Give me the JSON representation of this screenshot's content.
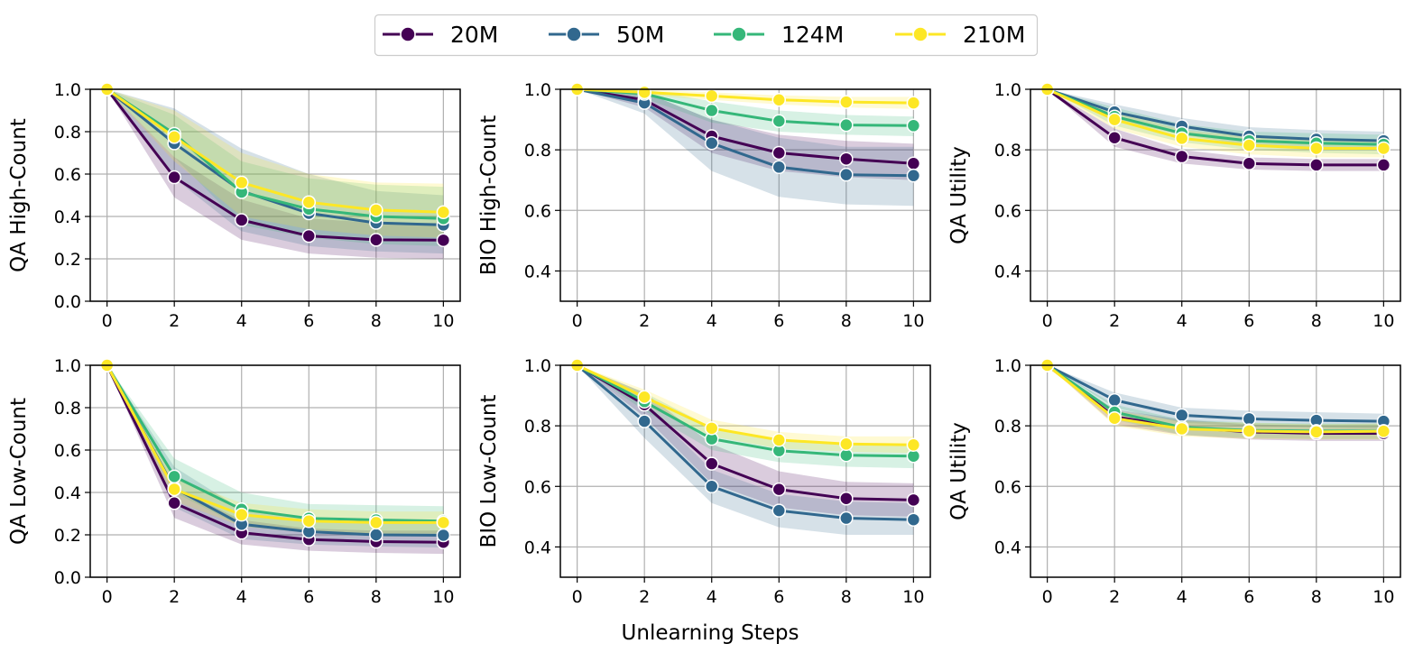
{
  "chart_data": {
    "type": "line",
    "xlabel": "Unlearning Steps",
    "x": [
      0,
      2,
      4,
      6,
      8,
      10
    ],
    "xticks": [
      "0",
      "2",
      "4",
      "6",
      "8",
      "10"
    ],
    "legend": {
      "location": "top-center",
      "entries": [
        {
          "name": "20M",
          "color": "#440154"
        },
        {
          "name": "50M",
          "color": "#31688e"
        },
        {
          "name": "124M",
          "color": "#35b779"
        },
        {
          "name": "210M",
          "color": "#fde725"
        }
      ]
    },
    "grid": true,
    "panels": [
      {
        "ylabel": "QA High-Count",
        "ylim": [
          0.0,
          1.0
        ],
        "yticks": [
          "0.0",
          "0.2",
          "0.4",
          "0.6",
          "0.8",
          "1.0"
        ],
        "series": [
          {
            "name": "20M",
            "values": [
              1.0,
              0.585,
              0.383,
              0.308,
              0.29,
              0.288
            ],
            "lower": [
              1.0,
              0.49,
              0.29,
              0.225,
              0.205,
              0.2
            ],
            "upper": [
              1.0,
              0.68,
              0.48,
              0.39,
              0.37,
              0.37
            ]
          },
          {
            "name": "50M",
            "values": [
              1.0,
              0.745,
              0.52,
              0.415,
              0.37,
              0.36
            ],
            "lower": [
              1.0,
              0.58,
              0.33,
              0.26,
              0.235,
              0.225
            ],
            "upper": [
              1.0,
              0.91,
              0.72,
              0.6,
              0.52,
              0.5
            ]
          },
          {
            "name": "124M",
            "values": [
              1.0,
              0.79,
              0.515,
              0.435,
              0.4,
              0.39
            ],
            "lower": [
              1.0,
              0.68,
              0.36,
              0.3,
              0.27,
              0.26
            ],
            "upper": [
              1.0,
              0.88,
              0.66,
              0.58,
              0.55,
              0.54
            ]
          },
          {
            "name": "210M",
            "values": [
              1.0,
              0.775,
              0.56,
              0.467,
              0.43,
              0.42
            ],
            "lower": [
              1.0,
              0.66,
              0.4,
              0.34,
              0.31,
              0.3
            ],
            "upper": [
              1.0,
              0.9,
              0.7,
              0.6,
              0.56,
              0.555
            ]
          }
        ]
      },
      {
        "ylabel": "BIO High-Count",
        "ylim": [
          0.3,
          1.0
        ],
        "yticks": [
          "0.4",
          "0.6",
          "0.8",
          "1.0"
        ],
        "series": [
          {
            "name": "20M",
            "values": [
              1.0,
              0.965,
              0.845,
              0.79,
              0.77,
              0.755
            ],
            "lower": [
              1.0,
              0.94,
              0.79,
              0.73,
              0.71,
              0.7
            ],
            "upper": [
              1.0,
              0.99,
              0.9,
              0.85,
              0.83,
              0.82
            ]
          },
          {
            "name": "50M",
            "values": [
              1.0,
              0.955,
              0.822,
              0.743,
              0.718,
              0.715
            ],
            "lower": [
              1.0,
              0.92,
              0.73,
              0.645,
              0.62,
              0.615
            ],
            "upper": [
              1.0,
              0.99,
              0.9,
              0.84,
              0.81,
              0.81
            ]
          },
          {
            "name": "124M",
            "values": [
              1.0,
              0.985,
              0.93,
              0.895,
              0.882,
              0.88
            ],
            "lower": [
              1.0,
              0.97,
              0.89,
              0.86,
              0.85,
              0.845
            ],
            "upper": [
              1.0,
              1.0,
              0.96,
              0.93,
              0.915,
              0.91
            ]
          },
          {
            "name": "210M",
            "values": [
              1.0,
              0.99,
              0.978,
              0.965,
              0.958,
              0.955
            ],
            "lower": [
              1.0,
              0.98,
              0.965,
              0.95,
              0.94,
              0.935
            ],
            "upper": [
              1.0,
              1.0,
              0.99,
              0.98,
              0.975,
              0.975
            ]
          }
        ]
      },
      {
        "ylabel": "QA Utility",
        "ylim": [
          0.3,
          1.0
        ],
        "yticks": [
          "0.4",
          "0.6",
          "0.8",
          "1.0"
        ],
        "series": [
          {
            "name": "20M",
            "values": [
              1.0,
              0.84,
              0.778,
              0.755,
              0.75,
              0.75
            ],
            "lower": [
              1.0,
              0.81,
              0.755,
              0.735,
              0.73,
              0.73
            ],
            "upper": [
              1.0,
              0.87,
              0.8,
              0.775,
              0.77,
              0.77
            ]
          },
          {
            "name": "50M",
            "values": [
              1.0,
              0.925,
              0.878,
              0.845,
              0.835,
              0.83
            ],
            "lower": [
              1.0,
              0.9,
              0.85,
              0.815,
              0.805,
              0.8
            ],
            "upper": [
              1.0,
              0.95,
              0.905,
              0.875,
              0.865,
              0.86
            ]
          },
          {
            "name": "124M",
            "values": [
              1.0,
              0.91,
              0.855,
              0.83,
              0.822,
              0.818
            ],
            "lower": [
              1.0,
              0.88,
              0.825,
              0.8,
              0.79,
              0.785
            ],
            "upper": [
              1.0,
              0.94,
              0.885,
              0.86,
              0.855,
              0.85
            ]
          },
          {
            "name": "210M",
            "values": [
              1.0,
              0.9,
              0.838,
              0.815,
              0.805,
              0.805
            ],
            "lower": [
              1.0,
              0.87,
              0.81,
              0.785,
              0.775,
              0.775
            ],
            "upper": [
              1.0,
              0.93,
              0.865,
              0.845,
              0.835,
              0.835
            ]
          }
        ]
      },
      {
        "ylabel": "QA Low-Count",
        "ylim": [
          0.0,
          1.0
        ],
        "yticks": [
          "0.0",
          "0.2",
          "0.4",
          "0.6",
          "0.8",
          "1.0"
        ],
        "series": [
          {
            "name": "20M",
            "values": [
              1.0,
              0.35,
              0.21,
              0.178,
              0.168,
              0.165
            ],
            "lower": [
              1.0,
              0.28,
              0.155,
              0.125,
              0.115,
              0.11
            ],
            "upper": [
              1.0,
              0.42,
              0.27,
              0.23,
              0.22,
              0.22
            ]
          },
          {
            "name": "50M",
            "values": [
              1.0,
              0.42,
              0.25,
              0.215,
              0.2,
              0.198
            ],
            "lower": [
              1.0,
              0.33,
              0.18,
              0.155,
              0.145,
              0.14
            ],
            "upper": [
              1.0,
              0.52,
              0.32,
              0.275,
              0.26,
              0.255
            ]
          },
          {
            "name": "124M",
            "values": [
              1.0,
              0.475,
              0.32,
              0.278,
              0.27,
              0.265
            ],
            "lower": [
              1.0,
              0.4,
              0.24,
              0.21,
              0.2,
              0.2
            ],
            "upper": [
              1.0,
              0.56,
              0.4,
              0.345,
              0.34,
              0.335
            ]
          },
          {
            "name": "210M",
            "values": [
              1.0,
              0.415,
              0.295,
              0.265,
              0.258,
              0.258
            ],
            "lower": [
              1.0,
              0.36,
              0.24,
              0.21,
              0.205,
              0.205
            ],
            "upper": [
              1.0,
              0.47,
              0.35,
              0.32,
              0.31,
              0.31
            ]
          }
        ]
      },
      {
        "ylabel": "BIO Low-Count",
        "ylim": [
          0.3,
          1.0
        ],
        "yticks": [
          "0.4",
          "0.6",
          "0.8",
          "1.0"
        ],
        "series": [
          {
            "name": "20M",
            "values": [
              1.0,
              0.87,
              0.675,
              0.59,
              0.56,
              0.555
            ],
            "lower": [
              1.0,
              0.83,
              0.61,
              0.53,
              0.505,
              0.5
            ],
            "upper": [
              1.0,
              0.91,
              0.74,
              0.65,
              0.615,
              0.61
            ]
          },
          {
            "name": "50M",
            "values": [
              1.0,
              0.815,
              0.6,
              0.52,
              0.495,
              0.49
            ],
            "lower": [
              1.0,
              0.76,
              0.545,
              0.465,
              0.44,
              0.44
            ],
            "upper": [
              1.0,
              0.87,
              0.655,
              0.575,
              0.55,
              0.545
            ]
          },
          {
            "name": "124M",
            "values": [
              1.0,
              0.88,
              0.757,
              0.718,
              0.703,
              0.7
            ],
            "lower": [
              1.0,
              0.85,
              0.72,
              0.68,
              0.665,
              0.66
            ],
            "upper": [
              1.0,
              0.91,
              0.795,
              0.755,
              0.74,
              0.74
            ]
          },
          {
            "name": "210M",
            "values": [
              1.0,
              0.895,
              0.792,
              0.753,
              0.74,
              0.737
            ],
            "lower": [
              1.0,
              0.87,
              0.765,
              0.725,
              0.715,
              0.71
            ],
            "upper": [
              1.0,
              0.92,
              0.82,
              0.78,
              0.765,
              0.765
            ]
          }
        ]
      },
      {
        "ylabel": "QA Utility",
        "ylim": [
          0.3,
          1.0
        ],
        "yticks": [
          "0.4",
          "0.6",
          "0.8",
          "1.0"
        ],
        "series": [
          {
            "name": "20M",
            "values": [
              1.0,
              0.83,
              0.795,
              0.78,
              0.775,
              0.775
            ],
            "lower": [
              1.0,
              0.805,
              0.77,
              0.755,
              0.75,
              0.75
            ],
            "upper": [
              1.0,
              0.855,
              0.82,
              0.805,
              0.8,
              0.8
            ]
          },
          {
            "name": "50M",
            "values": [
              1.0,
              0.885,
              0.835,
              0.823,
              0.818,
              0.815
            ],
            "lower": [
              1.0,
              0.86,
              0.81,
              0.8,
              0.795,
              0.79
            ],
            "upper": [
              1.0,
              0.91,
              0.86,
              0.85,
              0.845,
              0.84
            ]
          },
          {
            "name": "124M",
            "values": [
              1.0,
              0.845,
              0.795,
              0.785,
              0.783,
              0.783
            ],
            "lower": [
              1.0,
              0.82,
              0.77,
              0.76,
              0.757,
              0.757
            ],
            "upper": [
              1.0,
              0.87,
              0.82,
              0.81,
              0.808,
              0.808
            ]
          },
          {
            "name": "210M",
            "values": [
              1.0,
              0.825,
              0.79,
              0.783,
              0.78,
              0.782
            ],
            "lower": [
              1.0,
              0.8,
              0.765,
              0.757,
              0.755,
              0.755
            ],
            "upper": [
              1.0,
              0.85,
              0.815,
              0.81,
              0.805,
              0.808
            ]
          }
        ]
      }
    ]
  }
}
